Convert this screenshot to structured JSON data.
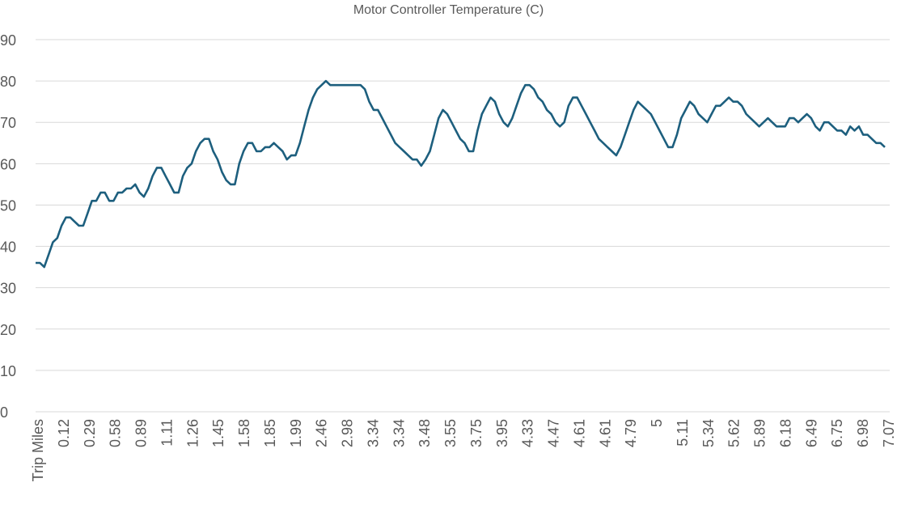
{
  "chart_data": {
    "type": "line",
    "title": "Motor Controller Temperature (C)",
    "xlabel": "",
    "ylabel": "",
    "ylim": [
      0,
      90
    ],
    "yticks": [
      0,
      10,
      20,
      30,
      40,
      50,
      60,
      70,
      80,
      90
    ],
    "grid": true,
    "x_tick_labels": [
      "Trip Miles",
      "0.12",
      "0.29",
      "0.58",
      "0.89",
      "1.11",
      "1.26",
      "1.45",
      "1.58",
      "1.85",
      "1.99",
      "2.46",
      "2.98",
      "3.34",
      "3.34",
      "3.48",
      "3.55",
      "3.75",
      "3.95",
      "4.33",
      "4.47",
      "4.61",
      "4.61",
      "4.79",
      "5",
      "5.11",
      "5.34",
      "5.62",
      "5.89",
      "6.18",
      "6.49",
      "6.75",
      "6.98",
      "7.07"
    ],
    "series": [
      {
        "name": "Motor Controller Temperature (C)",
        "color": "#1d5f7e",
        "values": [
          36,
          36,
          35,
          38,
          41,
          42,
          45,
          47,
          47,
          46,
          45,
          45,
          48,
          51,
          51,
          53,
          53,
          51,
          51,
          53,
          53,
          54,
          54,
          55,
          53,
          52,
          54,
          57,
          59,
          59,
          57,
          55,
          53,
          53,
          57,
          59,
          60,
          63,
          65,
          66,
          66,
          63,
          61,
          58,
          56,
          55,
          55,
          60,
          63,
          65,
          65,
          63,
          63,
          64,
          64,
          65,
          64,
          63,
          61,
          62,
          62,
          65,
          69,
          73,
          76,
          78,
          79,
          80,
          79,
          79,
          79,
          79,
          79,
          79,
          79,
          79,
          78,
          75,
          73,
          73,
          71,
          69,
          67,
          65,
          64,
          63,
          62,
          61,
          61,
          59.5,
          61,
          63,
          67,
          71,
          73,
          72,
          70,
          68,
          66,
          65,
          63,
          63,
          68,
          72,
          74,
          76,
          75,
          72,
          70,
          69,
          71,
          74,
          77,
          79,
          79,
          78,
          76,
          75,
          73,
          72,
          70,
          69,
          70,
          74,
          76,
          76,
          74,
          72,
          70,
          68,
          66,
          65,
          64,
          63,
          62,
          64,
          67,
          70,
          73,
          75,
          74,
          73,
          72,
          70,
          68,
          66,
          64,
          64,
          67,
          71,
          73,
          75,
          74,
          72,
          71,
          70,
          72,
          74,
          74,
          75,
          76,
          75,
          75,
          74,
          72,
          71,
          70,
          69,
          70,
          71,
          70,
          69,
          69,
          69,
          71,
          71,
          70,
          71,
          72,
          71,
          69,
          68,
          70,
          70,
          69,
          68,
          68,
          67,
          69,
          68,
          69,
          67,
          67,
          66,
          65,
          65,
          64
        ]
      }
    ]
  }
}
